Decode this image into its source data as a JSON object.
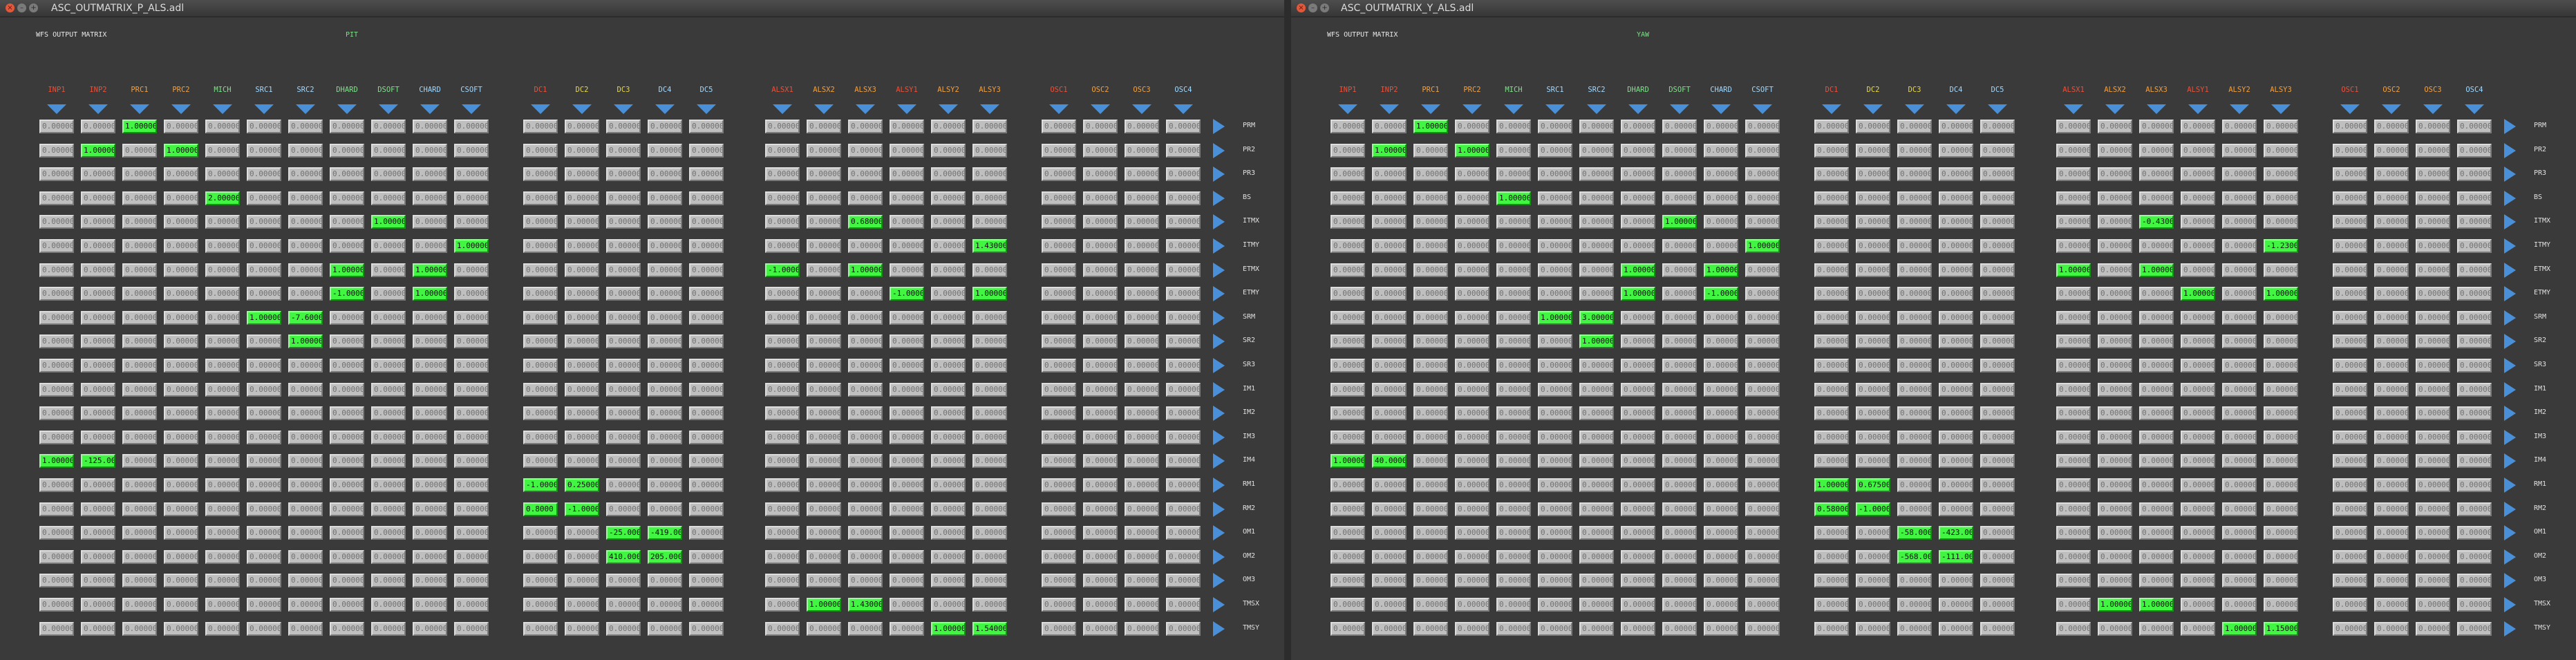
{
  "colors": {
    "arrow": "#4a90d9",
    "nonzero": "#42f542",
    "cell": "#bfbfbf",
    "red": "#e8503a",
    "orange": "#f0a040",
    "green": "#7ee08a",
    "lightblue": "#9fd8ff",
    "yellow": "#e8d840"
  },
  "icons": {
    "down": "triangle-down-icon",
    "right": "triangle-right-icon"
  },
  "rows": [
    "PRM",
    "PR2",
    "PR3",
    "BS",
    "ITMX",
    "ITMY",
    "ETMX",
    "ETMY",
    "SRM",
    "SR2",
    "SR3",
    "IM1",
    "IM2",
    "IM3",
    "IM4",
    "RM1",
    "RM2",
    "OM1",
    "OM2",
    "OM3",
    "TMSX",
    "TMSY"
  ],
  "columns": [
    {
      "name": "INP1",
      "color": "red"
    },
    {
      "name": "INP2",
      "color": "red"
    },
    {
      "name": "PRC1",
      "color": "orange"
    },
    {
      "name": "PRC2",
      "color": "orange"
    },
    {
      "name": "MICH",
      "color": "green"
    },
    {
      "name": "SRC1",
      "color": "lightblue"
    },
    {
      "name": "SRC2",
      "color": "lightblue"
    },
    {
      "name": "DHARD",
      "color": "green"
    },
    {
      "name": "DSOFT",
      "color": "green"
    },
    {
      "name": "CHARD",
      "color": "lightblue"
    },
    {
      "name": "CSOFT",
      "color": "lightblue"
    },
    {
      "name": "DC1",
      "color": "red"
    },
    {
      "name": "DC2",
      "color": "yellow"
    },
    {
      "name": "DC3",
      "color": "yellow"
    },
    {
      "name": "DC4",
      "color": "lightblue"
    },
    {
      "name": "DC5",
      "color": "lightblue"
    },
    {
      "name": "ALSX1",
      "color": "red"
    },
    {
      "name": "ALSX2",
      "color": "orange"
    },
    {
      "name": "ALSX3",
      "color": "orange"
    },
    {
      "name": "ALSY1",
      "color": "red"
    },
    {
      "name": "ALSY2",
      "color": "orange"
    },
    {
      "name": "ALSY3",
      "color": "orange"
    },
    {
      "name": "OSC1",
      "color": "red"
    },
    {
      "name": "OSC2",
      "color": "orange"
    },
    {
      "name": "OSC3",
      "color": "orange"
    },
    {
      "name": "OSC4",
      "color": "lightblue"
    }
  ],
  "zero_text": "0.00000",
  "windows": [
    {
      "title": "ASC_OUTMATRIX_P_ALS.adl",
      "header": "WFS OUTPUT MATRIX",
      "dof": "PIT",
      "nonzero": [
        {
          "r": 0,
          "c": 2,
          "v": "1.00000"
        },
        {
          "r": 1,
          "c": 1,
          "v": "1.00000"
        },
        {
          "r": 1,
          "c": 3,
          "v": "1.00000"
        },
        {
          "r": 3,
          "c": 4,
          "v": "2.00000"
        },
        {
          "r": 4,
          "c": 8,
          "v": "1.00000"
        },
        {
          "r": 4,
          "c": 18,
          "v": "0.68000"
        },
        {
          "r": 5,
          "c": 10,
          "v": "1.00000"
        },
        {
          "r": 5,
          "c": 21,
          "v": "1.43000"
        },
        {
          "r": 6,
          "c": 7,
          "v": "1.00000"
        },
        {
          "r": 6,
          "c": 9,
          "v": "1.00000"
        },
        {
          "r": 6,
          "c": 16,
          "v": "-1.0000"
        },
        {
          "r": 6,
          "c": 18,
          "v": "1.00000"
        },
        {
          "r": 7,
          "c": 7,
          "v": "-1.0000"
        },
        {
          "r": 7,
          "c": 9,
          "v": "1.00000"
        },
        {
          "r": 7,
          "c": 19,
          "v": "-1.0000"
        },
        {
          "r": 7,
          "c": 21,
          "v": "1.00000"
        },
        {
          "r": 8,
          "c": 5,
          "v": "1.00000"
        },
        {
          "r": 8,
          "c": 6,
          "v": "-7.6000"
        },
        {
          "r": 9,
          "c": 6,
          "v": "1.00000"
        },
        {
          "r": 14,
          "c": 0,
          "v": "1.00000"
        },
        {
          "r": 14,
          "c": 1,
          "v": "-125.00"
        },
        {
          "r": 15,
          "c": 11,
          "v": "-1.0000"
        },
        {
          "r": 15,
          "c": 12,
          "v": "0.25000"
        },
        {
          "r": 16,
          "c": 11,
          "v": "0.8000"
        },
        {
          "r": 16,
          "c": 12,
          "v": "-1.0000"
        },
        {
          "r": 17,
          "c": 13,
          "v": "-25.000"
        },
        {
          "r": 17,
          "c": 14,
          "v": "-419.00"
        },
        {
          "r": 18,
          "c": 13,
          "v": "410.000"
        },
        {
          "r": 18,
          "c": 14,
          "v": "205.000"
        },
        {
          "r": 20,
          "c": 17,
          "v": "1.00000"
        },
        {
          "r": 20,
          "c": 18,
          "v": "1.43000"
        },
        {
          "r": 21,
          "c": 20,
          "v": "1.00000"
        },
        {
          "r": 21,
          "c": 21,
          "v": "1.54000"
        }
      ]
    },
    {
      "title": "ASC_OUTMATRIX_Y_ALS.adl",
      "header": "WFS OUTPUT MATRIX",
      "dof": "YAW",
      "nonzero": [
        {
          "r": 0,
          "c": 2,
          "v": "1.00000"
        },
        {
          "r": 1,
          "c": 1,
          "v": "1.00000"
        },
        {
          "r": 1,
          "c": 3,
          "v": "1.00000"
        },
        {
          "r": 3,
          "c": 4,
          "v": "1.00000"
        },
        {
          "r": 4,
          "c": 8,
          "v": "1.00000"
        },
        {
          "r": 4,
          "c": 18,
          "v": "-0.4300"
        },
        {
          "r": 5,
          "c": 10,
          "v": "1.00000"
        },
        {
          "r": 5,
          "c": 21,
          "v": "-1.2300"
        },
        {
          "r": 6,
          "c": 7,
          "v": "1.00000"
        },
        {
          "r": 6,
          "c": 9,
          "v": "1.00000"
        },
        {
          "r": 6,
          "c": 16,
          "v": "1.00000"
        },
        {
          "r": 6,
          "c": 18,
          "v": "1.00000"
        },
        {
          "r": 7,
          "c": 7,
          "v": "1.00000"
        },
        {
          "r": 7,
          "c": 9,
          "v": "-1.0000"
        },
        {
          "r": 7,
          "c": 19,
          "v": "1.00000"
        },
        {
          "r": 7,
          "c": 21,
          "v": "1.00000"
        },
        {
          "r": 8,
          "c": 5,
          "v": "1.00000"
        },
        {
          "r": 8,
          "c": 6,
          "v": "3.00000"
        },
        {
          "r": 9,
          "c": 6,
          "v": "1.00000"
        },
        {
          "r": 14,
          "c": 0,
          "v": "1.00000"
        },
        {
          "r": 14,
          "c": 1,
          "v": "40.0000"
        },
        {
          "r": 15,
          "c": 11,
          "v": "1.00000"
        },
        {
          "r": 15,
          "c": 12,
          "v": "0.67500"
        },
        {
          "r": 16,
          "c": 11,
          "v": "0.58000"
        },
        {
          "r": 16,
          "c": 12,
          "v": "-1.0000"
        },
        {
          "r": 17,
          "c": 13,
          "v": "-58.000"
        },
        {
          "r": 17,
          "c": 14,
          "v": "-423.00"
        },
        {
          "r": 18,
          "c": 13,
          "v": "-568.00"
        },
        {
          "r": 18,
          "c": 14,
          "v": "-111.00"
        },
        {
          "r": 20,
          "c": 17,
          "v": "1.00000"
        },
        {
          "r": 20,
          "c": 18,
          "v": "1.00000"
        },
        {
          "r": 21,
          "c": 20,
          "v": "1.00000"
        },
        {
          "r": 21,
          "c": 21,
          "v": "1.15000"
        }
      ]
    }
  ]
}
